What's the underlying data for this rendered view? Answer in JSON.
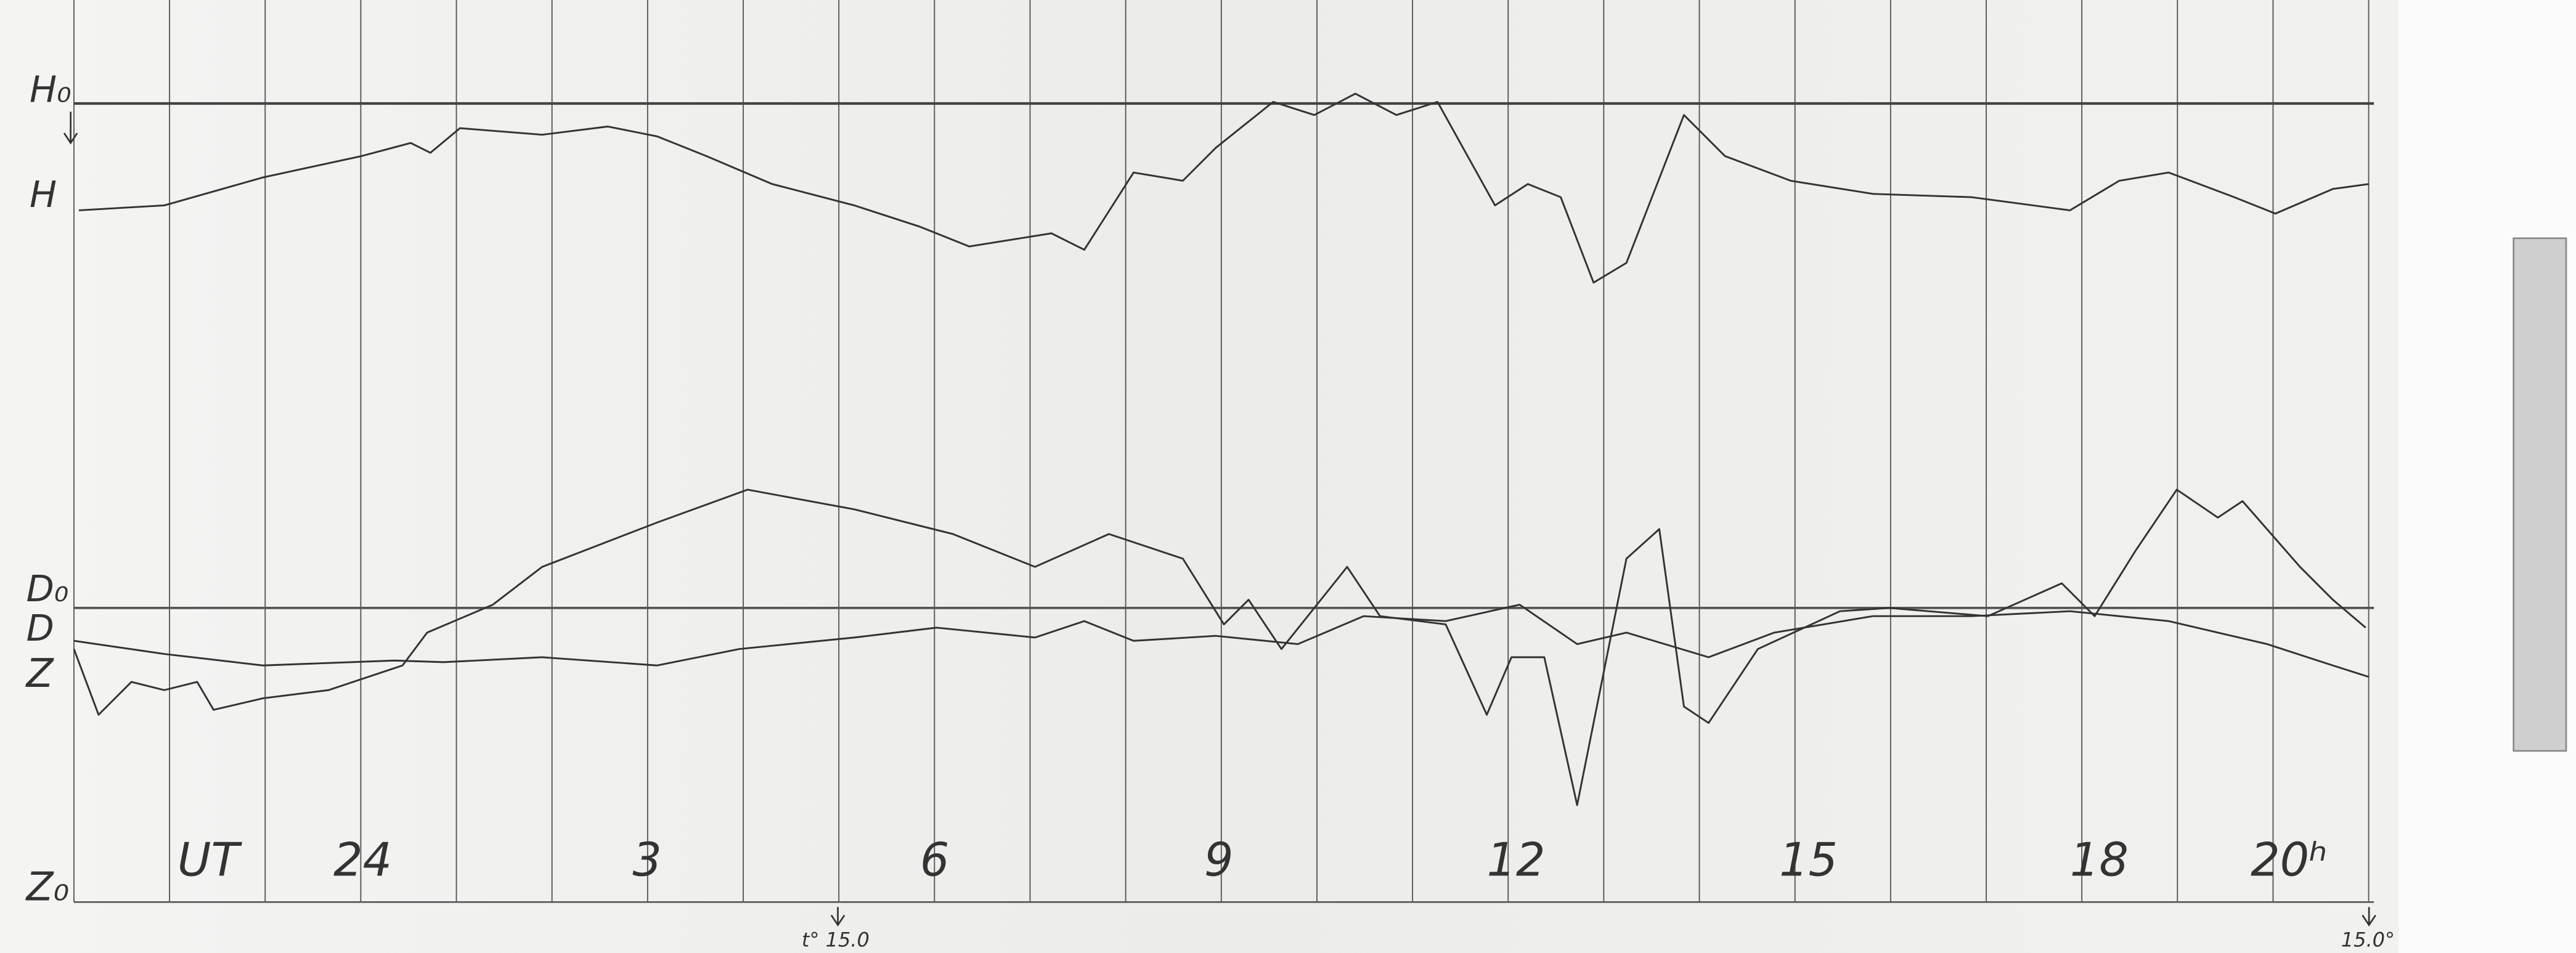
{
  "trace_labels": {
    "h_base": "H₀",
    "h": "H",
    "d_base": "D₀",
    "d": "D",
    "z": "Z",
    "z_base": "Z₀"
  },
  "time_axis": {
    "unit": "UT",
    "hours": [
      "24",
      "3",
      "6",
      "9",
      "12",
      "15",
      "18",
      "20ʰ"
    ]
  },
  "footer": {
    "start_temperature": "t° 15.0",
    "end_temperature": "15.0°"
  }
}
